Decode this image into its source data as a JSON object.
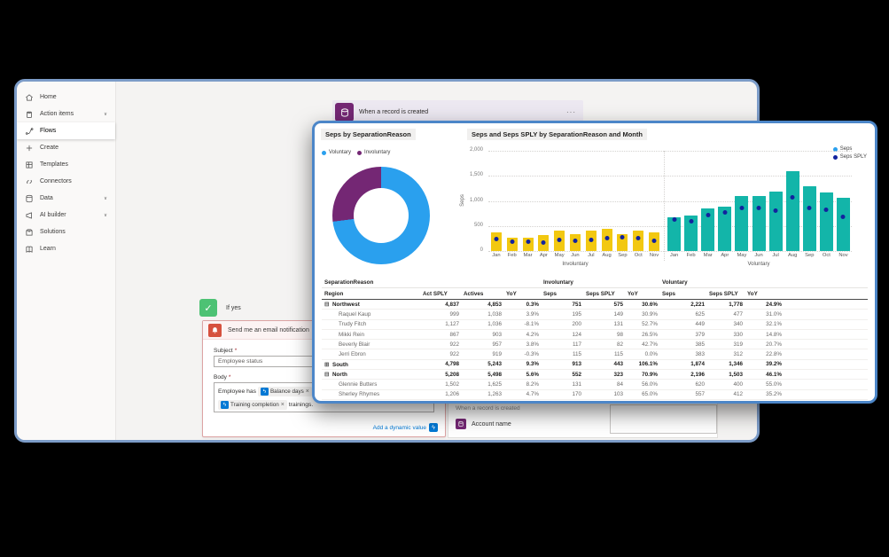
{
  "app": {
    "sidebar": {
      "items": [
        {
          "label": "Home",
          "icon": "home-icon",
          "chevron": false,
          "active": false
        },
        {
          "label": "Action items",
          "icon": "action-items-icon",
          "chevron": true,
          "active": false
        },
        {
          "label": "Flows",
          "icon": "flows-icon",
          "chevron": false,
          "active": true
        },
        {
          "label": "Create",
          "icon": "create-icon",
          "chevron": false,
          "active": false
        },
        {
          "label": "Templates",
          "icon": "templates-icon",
          "chevron": false,
          "active": false
        },
        {
          "label": "Connectors",
          "icon": "connectors-icon",
          "chevron": false,
          "active": false
        },
        {
          "label": "Data",
          "icon": "data-icon",
          "chevron": true,
          "active": false
        },
        {
          "label": "AI builder",
          "icon": "ai-builder-icon",
          "chevron": true,
          "active": false
        },
        {
          "label": "Solutions",
          "icon": "solutions-icon",
          "chevron": false,
          "active": false
        },
        {
          "label": "Learn",
          "icon": "learn-icon",
          "chevron": false,
          "active": false
        }
      ]
    },
    "flow": {
      "trigger": {
        "title": "When a record is created",
        "menu": "···"
      },
      "condition": {
        "label": "If yes"
      },
      "email_card": {
        "title": "Send me an email notification",
        "subject_label": "Subject",
        "body_label": "Body",
        "required_mark": "*",
        "subject_value": "Employee status",
        "body_text_1": "Employee has",
        "chip_1": "Balance days",
        "chip_remove": "×",
        "body_text_2": "ba",
        "chip_2": "Training completion",
        "body_text_3": "trainings.",
        "add_dynamic_value": "Add a dynamic value"
      },
      "dynamic_panel": {
        "group_title": "When a record is created",
        "item_label": "Account name"
      }
    },
    "colors": {
      "window_border": "#7C9CC8",
      "report_border": "#4C86C8",
      "dataverse_purple": "#742774",
      "email_red": "#D6513E",
      "condition_green": "#4DC274",
      "link_blue": "#0078D4"
    }
  },
  "chart_data": [
    {
      "type": "pie",
      "donut": true,
      "title": "Seps by SeparationReason",
      "labels": [
        "Voluntary",
        "Involuntary"
      ],
      "values": [
        73,
        27
      ],
      "unit": "percent (estimated share)",
      "colors": [
        "#2AA0EE",
        "#742774"
      ],
      "legend_position": "top"
    },
    {
      "type": "bar",
      "title": "Seps and Seps SPLY by SeparationReason and Month",
      "xlabel": "",
      "ylabel": "Seps",
      "ylim": [
        0,
        2000
      ],
      "yticks": [
        "2,000",
        "1,500",
        "1,000",
        "500",
        "0"
      ],
      "grid": "dotted horizontal",
      "legend_position": "top-right",
      "legend": [
        {
          "label": "Seps",
          "color": "#2AA0EE"
        },
        {
          "label": "Seps SPLY",
          "color": "#12239E"
        }
      ],
      "groups": [
        {
          "name": "Involuntary",
          "bar_color": "#F2C811",
          "months": [
            "Jan",
            "Feb",
            "Mar",
            "Apr",
            "May",
            "Jun",
            "Jul",
            "Aug",
            "Sep",
            "Oct",
            "Nov"
          ],
          "seps": [
            365,
            260,
            260,
            315,
            400,
            340,
            400,
            440,
            340,
            400,
            365
          ],
          "seps_sply": [
            245,
            185,
            185,
            160,
            220,
            205,
            230,
            265,
            280,
            255,
            205
          ]
        },
        {
          "name": "Voluntary",
          "bar_color": "#13B5A9",
          "months": [
            "Jan",
            "Feb",
            "Mar",
            "Apr",
            "May",
            "Jun",
            "Jul",
            "Aug",
            "Sep",
            "Oct",
            "Nov"
          ],
          "seps": [
            680,
            705,
            850,
            885,
            1090,
            1105,
            1190,
            1600,
            1285,
            1165,
            1070
          ],
          "seps_sply": [
            620,
            595,
            725,
            765,
            860,
            850,
            810,
            1065,
            850,
            825,
            680
          ]
        }
      ]
    },
    {
      "type": "table",
      "row_header_top": "SeparationReason",
      "row_header": "Region",
      "group_headers": [
        "Involuntary",
        "Voluntary"
      ],
      "columns": [
        "Act SPLY",
        "Actives",
        "YoY",
        "Seps",
        "Seps SPLY",
        "YoY",
        "Seps",
        "Seps SPLY",
        "YoY"
      ],
      "rows": [
        {
          "name": "Northwest",
          "level": "group",
          "expander": "expanded",
          "values": [
            "4,837",
            "4,853",
            "0.3%",
            "751",
            "575",
            "30.6%",
            "2,221",
            "1,778",
            "24.9%"
          ]
        },
        {
          "name": "Raquel Kaup",
          "level": "detail",
          "expander": null,
          "values": [
            "999",
            "1,038",
            "3.9%",
            "195",
            "149",
            "30.9%",
            "625",
            "477",
            "31.0%"
          ]
        },
        {
          "name": "Trudy Fitch",
          "level": "detail",
          "expander": null,
          "values": [
            "1,127",
            "1,036",
            "-8.1%",
            "200",
            "131",
            "52.7%",
            "449",
            "340",
            "32.1%"
          ]
        },
        {
          "name": "Mikki Rein",
          "level": "detail",
          "expander": null,
          "values": [
            "867",
            "903",
            "4.2%",
            "124",
            "98",
            "26.5%",
            "379",
            "330",
            "14.8%"
          ]
        },
        {
          "name": "Beverly Blair",
          "level": "detail",
          "expander": null,
          "values": [
            "922",
            "957",
            "3.8%",
            "117",
            "82",
            "42.7%",
            "385",
            "319",
            "20.7%"
          ]
        },
        {
          "name": "Jerri Ebron",
          "level": "detail",
          "expander": null,
          "values": [
            "922",
            "919",
            "-0.3%",
            "115",
            "115",
            "0.0%",
            "383",
            "312",
            "22.8%"
          ]
        },
        {
          "name": "South",
          "level": "group",
          "expander": "collapsed",
          "values": [
            "4,798",
            "5,243",
            "9.3%",
            "913",
            "443",
            "106.1%",
            "1,874",
            "1,346",
            "39.2%"
          ]
        },
        {
          "name": "North",
          "level": "group",
          "expander": "expanded",
          "values": [
            "5,208",
            "5,498",
            "5.6%",
            "552",
            "323",
            "70.9%",
            "2,196",
            "1,503",
            "46.1%"
          ]
        },
        {
          "name": "Glennie Butters",
          "level": "detail",
          "expander": null,
          "values": [
            "1,502",
            "1,625",
            "8.2%",
            "131",
            "84",
            "56.0%",
            "620",
            "400",
            "55.0%"
          ]
        },
        {
          "name": "Sherley Rhymes",
          "level": "detail",
          "expander": null,
          "values": [
            "1,206",
            "1,263",
            "4.7%",
            "170",
            "103",
            "65.0%",
            "557",
            "412",
            "35.2%"
          ]
        }
      ]
    }
  ]
}
